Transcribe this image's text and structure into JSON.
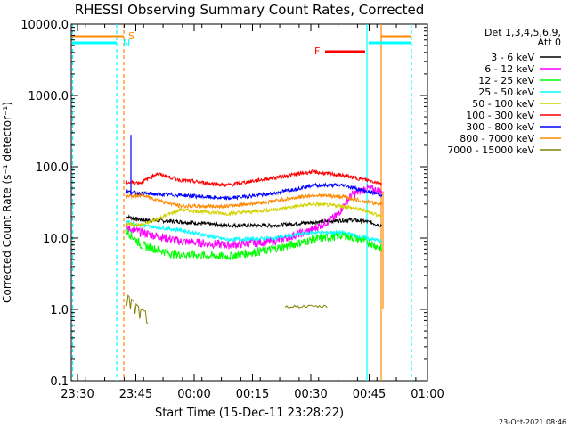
{
  "chart_data": {
    "type": "line",
    "title": "RHESSI Observing Summary Count Rates, Corrected",
    "xlabel": "Start Time (15-Dec-11 23:28:22)",
    "ylabel": "Corrected Count Rate (s⁻¹ detector⁻¹)",
    "yscale": "log",
    "ylim": [
      0.1,
      10000
    ],
    "xlim_minutes_after_23_28_22": [
      0,
      91.6
    ],
    "xticks": [
      {
        "label": "23:30",
        "t": 1.6
      },
      {
        "label": "23:45",
        "t": 16.6
      },
      {
        "label": "00:00",
        "t": 31.6
      },
      {
        "label": "00:15",
        "t": 46.6
      },
      {
        "label": "00:30",
        "t": 61.6
      },
      {
        "label": "00:45",
        "t": 76.6
      },
      {
        "label": "01:00",
        "t": 91.6
      }
    ],
    "yticks": [
      {
        "label": "10000.0",
        "v": 10000
      },
      {
        "label": "1000.0",
        "v": 1000
      },
      {
        "label": "100.0",
        "v": 100
      },
      {
        "label": "10.0",
        "v": 10
      },
      {
        "label": "1.0",
        "v": 1
      },
      {
        "label": "0.1",
        "v": 0.1
      }
    ],
    "legend_header": [
      "Det 1,3,4,5,6,9,",
      "Att 0"
    ],
    "legend_placement": "right",
    "series": [
      {
        "name": "3 - 6 keV",
        "color": "#000000",
        "t": [
          14,
          18,
          28,
          40,
          52,
          64,
          72,
          76,
          80
        ],
        "values": [
          20,
          18,
          17,
          15,
          15,
          17,
          18,
          17,
          15
        ]
      },
      {
        "name": "6 - 12 keV",
        "color": "#ff00ff",
        "t": [
          14,
          18,
          28,
          40,
          52,
          62,
          68,
          72,
          76,
          80
        ],
        "values": [
          14,
          12,
          9,
          8,
          9,
          13,
          20,
          40,
          50,
          45
        ]
      },
      {
        "name": "12 - 25 keV",
        "color": "#00ff00",
        "t": [
          14,
          18,
          26,
          40,
          52,
          62,
          70,
          76,
          80
        ],
        "values": [
          13,
          8,
          6,
          5.5,
          7,
          9.5,
          11,
          9,
          7
        ]
      },
      {
        "name": "25 - 50 keV",
        "color": "#00ffff",
        "t": [
          14,
          18,
          28,
          40,
          52,
          62,
          70,
          76,
          80
        ],
        "values": [
          17,
          15,
          13,
          9.5,
          10,
          12,
          12,
          10,
          9
        ]
      },
      {
        "name": "50 - 100 keV",
        "color": "#d2d200",
        "t": [
          14,
          18,
          28,
          40,
          52,
          62,
          70,
          76,
          80
        ],
        "values": [
          16,
          15,
          25,
          22,
          25,
          30,
          28,
          24,
          20
        ]
      },
      {
        "name": "100 - 300 keV",
        "color": "#ff0000",
        "t": [
          14,
          18,
          22,
          28,
          40,
          52,
          62,
          70,
          76,
          80
        ],
        "values": [
          60,
          60,
          80,
          65,
          55,
          70,
          85,
          75,
          65,
          58
        ]
      },
      {
        "name": "300 - 800 keV",
        "color": "#0000ff",
        "t": [
          14,
          18,
          28,
          40,
          52,
          62,
          70,
          76,
          80
        ],
        "values": [
          45,
          42,
          40,
          36,
          42,
          55,
          55,
          45,
          40
        ]
      },
      {
        "name": "800 - 7000 keV",
        "color": "#ff8800",
        "t": [
          14,
          18,
          28,
          40,
          52,
          62,
          70,
          76,
          80
        ],
        "values": [
          38,
          40,
          28,
          28,
          33,
          40,
          38,
          32,
          30
        ]
      },
      {
        "name": "7000 - 15000 keV",
        "color": "#808000",
        "t": [
          14,
          18,
          20
        ],
        "values": [
          1.7,
          1.0,
          0.9
        ]
      }
    ],
    "flags": [
      {
        "label": "S",
        "color": "#ff8800"
      },
      {
        "label": "N",
        "color": "#00ffff"
      },
      {
        "label": "F",
        "color": "#ff0000"
      }
    ],
    "footer": "23-Oct-2021 08:46"
  }
}
